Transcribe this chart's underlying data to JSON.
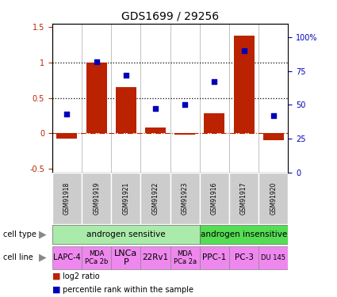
{
  "title": "GDS1699 / 29256",
  "samples": [
    "GSM91918",
    "GSM91919",
    "GSM91921",
    "GSM91922",
    "GSM91923",
    "GSM91916",
    "GSM91917",
    "GSM91920"
  ],
  "log2_ratio": [
    -0.07,
    1.0,
    0.65,
    0.08,
    -0.02,
    0.28,
    1.38,
    -0.1
  ],
  "percentile_rank": [
    43,
    82,
    72,
    47,
    50,
    67,
    90,
    42
  ],
  "bar_color": "#bb2200",
  "dot_color": "#0000bb",
  "ylim_left": [
    -0.55,
    1.55
  ],
  "ylim_right": [
    0,
    110
  ],
  "yticks_left": [
    -0.5,
    0.0,
    0.5,
    1.0,
    1.5
  ],
  "ytick_labels_left": [
    "-0.5",
    "0",
    "0.5",
    "1",
    "1.5"
  ],
  "yticks_right": [
    0,
    25,
    50,
    75,
    100
  ],
  "ytick_labels_right": [
    "0",
    "25",
    "50",
    "75",
    "100%"
  ],
  "hlines": [
    0.5,
    1.0
  ],
  "zero_line_color": "#bb2200",
  "cell_type_sensitive": "androgen sensitive",
  "cell_type_insensitive": "androgen insensitive",
  "cell_type_sensitive_color": "#aaeaaa",
  "cell_type_insensitive_color": "#55dd55",
  "cell_line_color": "#ee88ee",
  "cell_lines": [
    "LAPC-4",
    "MDA\nPCa 2b",
    "LNCa\nP",
    "22Rv1",
    "MDA\nPCa 2a",
    "PPC-1",
    "PC-3",
    "DU 145"
  ],
  "cell_line_fontsizes": [
    7,
    6,
    8,
    7.5,
    6,
    7.5,
    7.5,
    6
  ],
  "sensitive_count": 5,
  "insensitive_count": 3,
  "legend_log2": "log2 ratio",
  "legend_pct": "percentile rank within the sample",
  "tick_label_color_left": "#bb2200",
  "tick_label_color_right": "#0000bb",
  "sample_box_color": "#cccccc",
  "bar_width": 0.7
}
